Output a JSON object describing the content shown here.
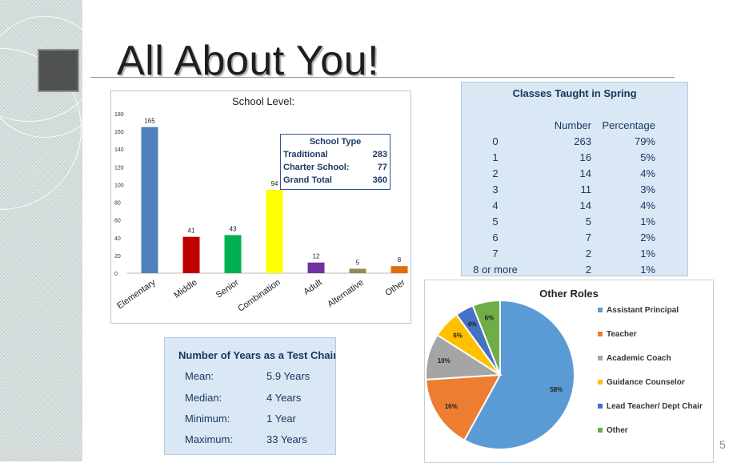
{
  "slide": {
    "title": "All About You!",
    "number": "5"
  },
  "charts": [
    {
      "type": "bar",
      "title": "School Level:",
      "categories": [
        "Elementary",
        "Middle",
        "Senior",
        "Combination",
        "Adult",
        "Alternative",
        "Other"
      ],
      "values": [
        165,
        41,
        43,
        94,
        12,
        5,
        8
      ],
      "value_labels": [
        "165",
        "41",
        "43",
        "94",
        "12",
        "5",
        "8"
      ],
      "colors": [
        "#4f81bd",
        "#c00000",
        "#00b050",
        "#ffff00",
        "#7030a0",
        "#948a54",
        "#e46c0a"
      ],
      "ylim": [
        0,
        180
      ],
      "yticks": [
        "0",
        "20",
        "40",
        "60",
        "80",
        "100",
        "120",
        "140",
        "160",
        "180"
      ],
      "grid": false,
      "legend": "none"
    },
    {
      "type": "pie",
      "title": "Other Roles",
      "labels": [
        "Assistant Principal",
        "Teacher",
        "Academic Coach",
        "Guidance Counselor",
        "Lead Teacher/ Dept Chair",
        "Other"
      ],
      "values": [
        58,
        16,
        10,
        6,
        4,
        6
      ],
      "value_labels": [
        "58%",
        "16%",
        "10%",
        "6%",
        "4%",
        "6%"
      ],
      "colors": [
        "#5b9bd5",
        "#ed7d31",
        "#a5a5a5",
        "#ffc000",
        "#4472c4",
        "#70ad47"
      ],
      "legend": "right"
    }
  ],
  "school_type": {
    "title": "School Type",
    "rows": [
      {
        "label": "Traditional",
        "value": "283"
      },
      {
        "label": "Charter School:",
        "value": "77"
      },
      {
        "label": "Grand Total",
        "value": "360"
      }
    ]
  },
  "classes_taught": {
    "title": "Classes Taught in Spring",
    "headers": [
      "",
      "Number",
      "Percentage"
    ],
    "rows": [
      [
        "0",
        "263",
        "79%"
      ],
      [
        "1",
        "16",
        "5%"
      ],
      [
        "2",
        "14",
        "4%"
      ],
      [
        "3",
        "11",
        "3%"
      ],
      [
        "4",
        "14",
        "4%"
      ],
      [
        "5",
        "5",
        "1%"
      ],
      [
        "6",
        "7",
        "2%"
      ],
      [
        "7",
        "2",
        "1%"
      ],
      [
        "8 or more",
        "2",
        "1%"
      ]
    ]
  },
  "test_chair_years": {
    "title": "Number of Years as a Test Chair",
    "rows": [
      {
        "label": "Mean:",
        "value": "5.9 Years"
      },
      {
        "label": "Median:",
        "value": "4 Years"
      },
      {
        "label": "Minimum:",
        "value": "1 Year"
      },
      {
        "label": "Maximum:",
        "value": "33 Years"
      }
    ]
  }
}
